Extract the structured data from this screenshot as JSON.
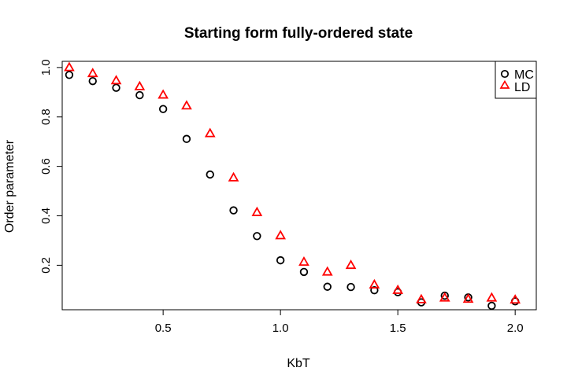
{
  "chart_data": {
    "type": "scatter",
    "title": "Starting form fully-ordered state",
    "xlabel": "KbT",
    "ylabel": "Order parameter",
    "xlim": [
      0.07,
      2.09
    ],
    "ylim": [
      0.02,
      1.025
    ],
    "x_ticks": [
      "0.5",
      "1.0",
      "1.5",
      "2.0"
    ],
    "x_tick_values": [
      0.5,
      1.0,
      1.5,
      2.0
    ],
    "y_ticks": [
      "0.2",
      "0.4",
      "0.6",
      "0.8",
      "1.0"
    ],
    "y_tick_values": [
      0.2,
      0.4,
      0.6,
      0.8,
      1.0
    ],
    "grid": false,
    "legend_position": "top-right",
    "x": [
      0.1,
      0.2,
      0.3,
      0.4,
      0.5,
      0.6,
      0.7,
      0.8,
      0.9,
      1.0,
      1.1,
      1.2,
      1.3,
      1.4,
      1.5,
      1.6,
      1.7,
      1.8,
      1.9,
      2.0
    ],
    "series": [
      {
        "name": "MC",
        "marker": "circle",
        "color": "#000000",
        "values": [
          0.97,
          0.945,
          0.918,
          0.888,
          0.832,
          0.711,
          0.567,
          0.422,
          0.318,
          0.22,
          0.173,
          0.113,
          0.112,
          0.099,
          0.091,
          0.05,
          0.077,
          0.07,
          0.036,
          0.054
        ]
      },
      {
        "name": "LD",
        "marker": "triangle",
        "color": "#ff0000",
        "values": [
          1.0,
          0.976,
          0.947,
          0.923,
          0.889,
          0.845,
          0.733,
          0.554,
          0.414,
          0.32,
          0.213,
          0.173,
          0.2,
          0.121,
          0.099,
          0.061,
          0.068,
          0.063,
          0.068,
          0.06
        ]
      }
    ]
  }
}
